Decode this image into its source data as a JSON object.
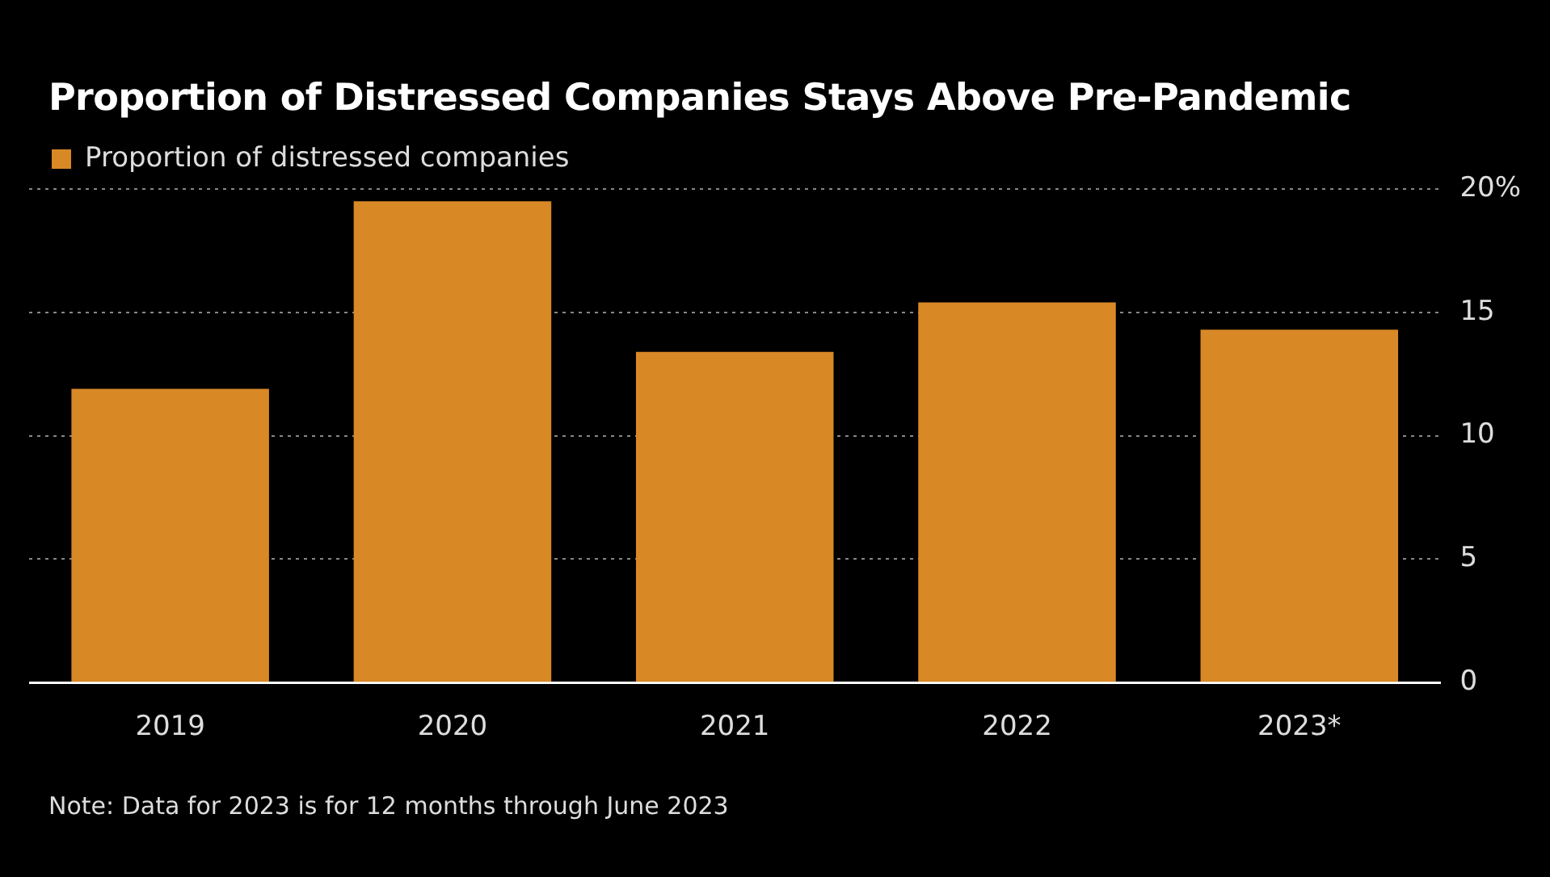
{
  "chart_data": {
    "type": "bar",
    "title": "Proportion of Distressed Companies Stays Above Pre-Pandemic",
    "categories": [
      "2019",
      "2020",
      "2021",
      "2022",
      "2023*"
    ],
    "series": [
      {
        "name": "Proportion of distressed companies",
        "color": "#d98826",
        "values": [
          11.9,
          19.5,
          13.4,
          15.4,
          14.3
        ]
      }
    ],
    "ylim": [
      0,
      20
    ],
    "yticks": [
      0,
      5,
      10,
      15,
      {
        "value": 20,
        "label": "20%"
      }
    ],
    "grid": "y",
    "legend": "top left",
    "annotations": [
      "Note: Data for 2023 is for 12 months through June 2023"
    ]
  }
}
